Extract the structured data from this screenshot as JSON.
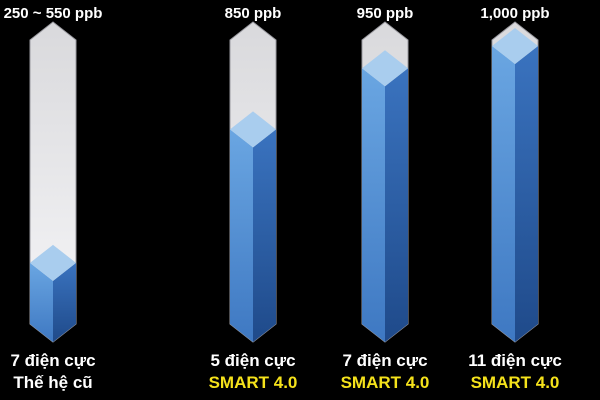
{
  "chart_data": {
    "type": "bar",
    "categories": [
      {
        "name": "7 điện cực",
        "subtitle": "Thế hệ cũ",
        "value_label": "250 ~ 550 ppb",
        "value_low": 250,
        "value_high": 550,
        "fill_level": 0.22
      },
      {
        "name": "5 điện cực",
        "subtitle": "SMART 4.0",
        "value_label": "850 ppb",
        "value": 850,
        "fill_level": 0.7
      },
      {
        "name": "7 điện cực",
        "subtitle": "SMART 4.0",
        "value_label": "950 ppb",
        "value": 950,
        "fill_level": 0.92
      },
      {
        "name": "11 điện cực",
        "subtitle": "SMART 4.0",
        "value_label": "1,000 ppb",
        "value": 1000,
        "fill_level": 1.0
      }
    ],
    "title": "",
    "xlabel": "",
    "ylabel": "",
    "ylim": [
      0,
      1000
    ],
    "grid": false,
    "legend": "none"
  },
  "colors": {
    "background": "#000000",
    "track": "#e9e9ec",
    "fill_front": "#4f8ad0",
    "fill_side": "#2a5a9f",
    "fill_top": "#a9cdee",
    "label": "#ffffff",
    "old_subtitle": "#ffffff",
    "new_subtitle": "#f5e21b"
  }
}
